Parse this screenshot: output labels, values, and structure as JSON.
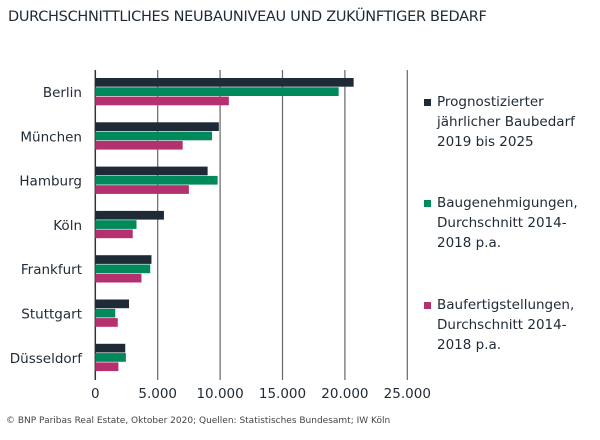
{
  "chart_data": {
    "type": "bar",
    "orientation": "horizontal",
    "title": "DURCHSCHNITTLICHES NEUBAUNIVEAU UND ZUKÜNFTIGER BEDARF",
    "categories": [
      "Berlin",
      "München",
      "Hamburg",
      "Köln",
      "Frankfurt",
      "Stuttgart",
      "Düsseldorf"
    ],
    "series": [
      {
        "name": "Prognostizierter jährlicher Baubedarf 2019 bis 2025",
        "color": "#1e2a36",
        "values": [
          20700,
          9900,
          9000,
          5500,
          4500,
          2700,
          2400
        ]
      },
      {
        "name": "Baugenehmigungen, Durchschnitt 2014-2018 p.a.",
        "color": "#00895a",
        "values": [
          19500,
          9350,
          9800,
          3300,
          4400,
          1600,
          2450
        ]
      },
      {
        "name": "Baufertigstellungen, Durchschnitt 2014-2018 p.a.",
        "color": "#b5306e",
        "values": [
          10700,
          7000,
          7500,
          3000,
          3700,
          1800,
          1850
        ]
      }
    ],
    "xlim": [
      0,
      25000
    ],
    "xticks": [
      "0",
      "5.000",
      "10.000",
      "15.000",
      "20.000",
      "25.000"
    ],
    "grid": true,
    "legend_position": "right"
  },
  "legend_labels": [
    "Prognostizierter\njährlicher Baubedarf\n2019 bis 2025",
    "Baugenehmigungen,\nDurchschnitt 2014-\n2018 p.a.",
    "Baufertigstellungen,\nDurchschnitt 2014-\n2018 p.a."
  ],
  "source": "© BNP Paribas Real Estate, Oktober 2020; Quellen: Statistisches Bundesamt; IW Köln"
}
